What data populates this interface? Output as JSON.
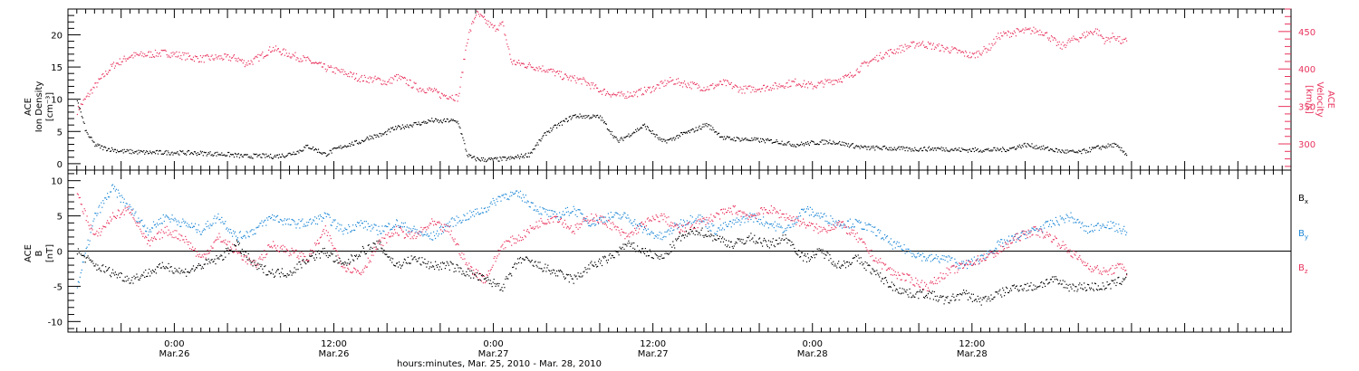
{
  "colors": {
    "black": "#000000",
    "red": "#e8335d",
    "blue": "#1f88d6"
  },
  "chart_data": [
    {
      "type": "scatter",
      "panel": "top",
      "left_axis": {
        "label_lines": [
          "ACE",
          "Ion Density",
          "[cm⁻³]"
        ],
        "ylim": [
          -1,
          24
        ],
        "ticks": [
          0,
          5,
          10,
          15,
          20
        ]
      },
      "right_axis": {
        "label_lines": [
          "ACE",
          "Velocity",
          "[km/s]"
        ],
        "ylim": [
          265,
          480
        ],
        "ticks": [
          300,
          350,
          400,
          450
        ]
      },
      "series": [
        {
          "axis": "left",
          "color": "#000000",
          "x": [
            -22,
            -20,
            -18,
            -16,
            -12,
            -6,
            0,
            6,
            12,
            16,
            19,
            22,
            25,
            28,
            30,
            32,
            34,
            36,
            38,
            42,
            44,
            47,
            48,
            49,
            52,
            54,
            56,
            58,
            60,
            62,
            64,
            66,
            67,
            68,
            70,
            72,
            74,
            76,
            80,
            84,
            90,
            96,
            100,
            106,
            110,
            112,
            114,
            118,
            120,
            124,
            130,
            136,
            140,
            144,
            148,
            152,
            156,
            160,
            166,
            172,
            178,
            184,
            188,
            192,
            196,
            200,
            204,
            208,
            212,
            215
          ],
          "y": [
            10,
            5,
            3,
            2.5,
            2.0,
            1.8,
            1.8,
            1.7,
            1.5,
            1.2,
            1.3,
            1.2,
            1.4,
            2.0,
            2.8,
            2.2,
            1.5,
            2.2,
            2.8,
            3.5,
            4.2,
            4.6,
            5.0,
            5.4,
            5.9,
            6.2,
            6.4,
            6.8,
            6.6,
            6.8,
            6.5,
            1.5,
            1.0,
            0.8,
            0.7,
            0.7,
            0.8,
            0.9,
            1.5,
            5.0,
            7.5,
            7.3,
            3.5,
            6.0,
            3.5,
            3.8,
            4.5,
            5.5,
            6.2,
            4.0,
            3.8,
            3.5,
            3.0,
            3.3,
            3.5,
            3.0,
            2.5,
            2.5,
            2.3,
            2.4,
            2.2,
            2.2,
            2.3,
            3.0,
            2.5,
            2.0,
            1.8,
            2.5,
            3.0,
            1.5
          ]
        },
        {
          "axis": "right",
          "color": "#e8335d",
          "x": [
            -22,
            -19,
            -17,
            -14,
            -10,
            -6,
            -2,
            2,
            6,
            10,
            14,
            16,
            18,
            22,
            26,
            30,
            34,
            38,
            42,
            46,
            48,
            50,
            52,
            55,
            58,
            60,
            62,
            64,
            66,
            68,
            70,
            72,
            74,
            76,
            80,
            84,
            88,
            92,
            96,
            100,
            104,
            108,
            112,
            116,
            120,
            124,
            128,
            132,
            136,
            140,
            144,
            148,
            152,
            156,
            160,
            164,
            168,
            172,
            176,
            180,
            184,
            186,
            190,
            194,
            196,
            198,
            200,
            202,
            204,
            206,
            208,
            210,
            212,
            214,
            215
          ],
          "y": [
            345,
            370,
            385,
            405,
            418,
            420,
            422,
            418,
            414,
            416,
            415,
            408,
            412,
            428,
            420,
            412,
            402,
            396,
            388,
            386,
            382,
            390,
            385,
            375,
            372,
            366,
            365,
            362,
            440,
            475,
            465,
            455,
            460,
            410,
            405,
            400,
            390,
            385,
            372,
            365,
            368,
            375,
            385,
            380,
            375,
            382,
            373,
            375,
            378,
            383,
            378,
            384,
            390,
            408,
            420,
            428,
            435,
            430,
            425,
            418,
            430,
            445,
            450,
            452,
            450,
            440,
            430,
            438,
            442,
            448,
            452,
            438,
            445,
            435,
            440
          ]
        }
      ]
    },
    {
      "type": "scatter",
      "panel": "bottom",
      "left_axis": {
        "label_lines": [
          "ACE",
          "B",
          "[nT]"
        ],
        "ylim": [
          -11.5,
          11.5
        ],
        "ticks": [
          -10,
          -5,
          0,
          5,
          10
        ]
      },
      "legend": {
        "position": "right",
        "entries": [
          {
            "base": "B",
            "sub": "x"
          },
          {
            "base": "B",
            "sub": "y"
          },
          {
            "base": "B",
            "sub": "z"
          }
        ]
      },
      "series": [
        {
          "name": "Bx",
          "color": "#000000",
          "x": [
            -22,
            -18,
            -14,
            -10,
            -6,
            -2,
            2,
            6,
            10,
            14,
            18,
            22,
            26,
            30,
            34,
            38,
            42,
            46,
            50,
            54,
            58,
            62,
            66,
            70,
            74,
            78,
            82,
            86,
            90,
            94,
            98,
            102,
            106,
            110,
            114,
            118,
            122,
            126,
            130,
            134,
            138,
            142,
            146,
            150,
            154,
            158,
            162,
            166,
            170,
            174,
            178,
            182,
            186,
            190,
            194,
            198,
            202,
            206,
            210,
            214,
            215
          ],
          "y": [
            0,
            -2,
            -3,
            -4,
            -3,
            -2,
            -3,
            -2,
            -1,
            1,
            -2,
            -3,
            -3,
            -1,
            0,
            -2,
            0,
            1,
            -2,
            -1,
            -2,
            -2,
            -3,
            -4,
            -5,
            -1,
            -2,
            -3,
            -4,
            -2,
            -1,
            1,
            0,
            -1,
            2,
            3,
            2,
            1,
            2,
            1,
            2,
            -1,
            0,
            -2,
            -1,
            -3,
            -5,
            -6,
            -6,
            -7,
            -6,
            -7,
            -6,
            -5,
            -5,
            -4,
            -5,
            -5,
            -5,
            -4,
            -3
          ]
        },
        {
          "name": "By",
          "color": "#1f88d6",
          "x": [
            -22,
            -18,
            -14,
            -10,
            -6,
            -2,
            2,
            6,
            10,
            14,
            18,
            22,
            26,
            30,
            34,
            38,
            42,
            46,
            50,
            54,
            58,
            62,
            66,
            70,
            74,
            78,
            82,
            86,
            90,
            94,
            98,
            102,
            106,
            110,
            114,
            118,
            122,
            126,
            130,
            134,
            138,
            142,
            146,
            150,
            154,
            158,
            162,
            166,
            170,
            174,
            178,
            182,
            186,
            190,
            194,
            198,
            202,
            206,
            210,
            214,
            215
          ],
          "y": [
            -5,
            5,
            9,
            6,
            3,
            5,
            4,
            3,
            5,
            2,
            3,
            5,
            4,
            4,
            5,
            3,
            4,
            3,
            4,
            3,
            2,
            4,
            5,
            6,
            8,
            8,
            6,
            5,
            6,
            4,
            5,
            5,
            3,
            2,
            4,
            5,
            3,
            4,
            5,
            4,
            3,
            6,
            5,
            4,
            4,
            3,
            1,
            0,
            -1,
            -1,
            -2,
            -1,
            1,
            2,
            3,
            4,
            5,
            3,
            4,
            3,
            3
          ]
        },
        {
          "name": "Bz",
          "color": "#e8335d",
          "x": [
            -22,
            -18,
            -14,
            -10,
            -6,
            -2,
            2,
            6,
            10,
            14,
            18,
            22,
            26,
            30,
            34,
            38,
            42,
            46,
            50,
            54,
            58,
            62,
            66,
            70,
            74,
            78,
            82,
            86,
            90,
            94,
            98,
            102,
            106,
            110,
            114,
            118,
            122,
            126,
            130,
            134,
            138,
            142,
            146,
            150,
            154,
            158,
            162,
            166,
            170,
            174,
            178,
            182,
            186,
            190,
            194,
            198,
            202,
            206,
            210,
            214,
            215
          ],
          "y": [
            8,
            2,
            5,
            6,
            1,
            3,
            2,
            -1,
            2,
            0,
            -2,
            1,
            0,
            -1,
            3,
            -2,
            -3,
            1,
            3,
            2,
            4,
            3,
            -2,
            -4,
            1,
            2,
            4,
            5,
            3,
            5,
            4,
            2,
            4,
            5,
            3,
            4,
            5,
            6,
            5,
            6,
            5,
            4,
            3,
            4,
            2,
            -1,
            -3,
            -4,
            -5,
            -3,
            -2,
            -1,
            0,
            2,
            3,
            2,
            0,
            -2,
            -3,
            -2,
            -3
          ]
        }
      ]
    }
  ],
  "x_axis": {
    "xlim": [
      -24,
      252
    ],
    "major_ticks": [
      {
        "x": 0,
        "time": "0:00",
        "date": "Mar.26"
      },
      {
        "x": 36,
        "time": "12:00",
        "date": "Mar.26"
      },
      {
        "x": 72,
        "time": "0:00",
        "date": "Mar.27"
      },
      {
        "x": 108,
        "time": "12:00",
        "date": "Mar.27"
      },
      {
        "x": 144,
        "time": "0:00",
        "date": "Mar.28"
      },
      {
        "x": 180,
        "time": "12:00",
        "date": "Mar.28"
      }
    ],
    "title": "hours:minutes, Mar. 25, 2010 - Mar. 28, 2010"
  }
}
